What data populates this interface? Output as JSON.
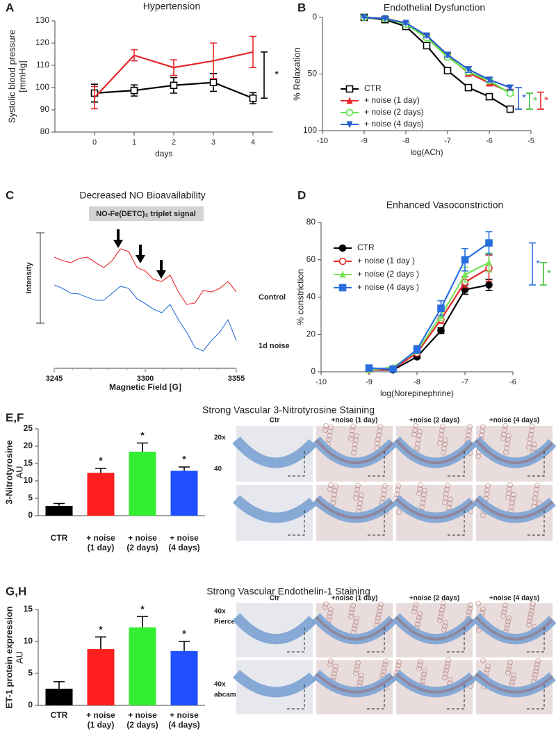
{
  "chart_data": [
    {
      "type": "line",
      "panel": "A",
      "title": "Hypertension",
      "y_label": [
        "Systolic blood pressure",
        "[mmHg]"
      ],
      "x_label": "days",
      "x": [
        0,
        1,
        2,
        3,
        4
      ],
      "xlim": [
        -1,
        4.5
      ],
      "xticks": [
        0,
        1,
        2,
        3,
        4
      ],
      "ylim": [
        80,
        130
      ],
      "yticks": [
        80,
        90,
        100,
        110,
        120,
        130
      ],
      "series": [
        {
          "color": "#000000",
          "marker": "square-open",
          "values": [
            97.5,
            98.7,
            101,
            102.3,
            95.2
          ],
          "errors": [
            4,
            2.5,
            3.5,
            4,
            2.5
          ]
        },
        {
          "color": "#e8262a",
          "marker": "none",
          "values": [
            95.5,
            114.5,
            109,
            112,
            116
          ],
          "errors": [
            5,
            2.5,
            3.5,
            8,
            7
          ]
        }
      ],
      "annotations": [
        {
          "text": "*",
          "color": "#000000"
        }
      ]
    },
    {
      "type": "line",
      "panel": "B",
      "title": "Endothelial Dysfunction",
      "y_label": "% Relaxation",
      "x_label": "log(ACh)",
      "x": [
        -9,
        -8.5,
        -8,
        -7.5,
        -7,
        -6.5,
        -6,
        -5.5
      ],
      "xlim": [
        -10,
        -5
      ],
      "xticks": [
        -10,
        -9,
        -8,
        -7,
        -6,
        -5
      ],
      "ylim": [
        100,
        0
      ],
      "yticks": [
        0,
        50,
        100
      ],
      "legend": "lower left",
      "series": [
        {
          "name": "CTR",
          "color": "#000000",
          "marker": "square-open",
          "values": [
            0,
            2,
            8,
            25,
            47,
            62,
            70,
            81
          ],
          "errors": [
            0,
            0.5,
            1,
            1.5,
            1.5,
            1.5,
            1.5,
            1.5
          ]
        },
        {
          "name": "+ noise (1 day)",
          "color": "#e8262a",
          "marker": "triangle",
          "values": [
            0,
            1,
            5,
            17,
            34,
            49,
            58,
            66
          ],
          "errors": [
            0,
            0.5,
            1,
            1.5,
            2,
            3,
            2.5,
            2.5
          ]
        },
        {
          "name": "+ noise (2 days)",
          "color": "#5ee34a",
          "marker": "circle-open",
          "values": [
            0,
            1,
            6,
            18,
            35,
            48,
            56,
            67
          ],
          "errors": [
            0,
            0.5,
            1,
            1.5,
            2,
            2,
            2,
            2
          ]
        },
        {
          "name": "+ noise (4 days)",
          "color": "#2a5fcf",
          "marker": "triangle-down",
          "values": [
            0,
            1,
            5,
            16,
            33,
            46,
            55,
            62
          ],
          "errors": [
            0,
            0.5,
            1,
            1.5,
            2,
            2.5,
            2,
            2
          ]
        }
      ],
      "annotations": [
        {
          "text": "*",
          "color": "#2a5fcf"
        },
        {
          "text": "*",
          "color": "#3cc43c"
        },
        {
          "text": "*",
          "color": "#e8262a"
        }
      ]
    },
    {
      "type": "line",
      "panel": "C",
      "title": "Decreased NO Bioavailability",
      "box": "NO-Fe(DETC)₂ triplet signal",
      "y_label": "Intensity",
      "x_label": "Magnetic Field [G]",
      "x": [
        3245,
        3250,
        3255,
        3260,
        3265,
        3270,
        3275,
        3280,
        3285,
        3290,
        3295,
        3300,
        3305,
        3310,
        3315,
        3320,
        3325,
        3330,
        3335,
        3340,
        3345,
        3350,
        3355
      ],
      "xlim": [
        3245,
        3355
      ],
      "xticks": [
        3245,
        3300,
        3355
      ],
      "ylim": [
        0,
        100
      ],
      "series": [
        {
          "name": "Control",
          "color": "#e8262a",
          "marker": "none",
          "values": [
            80,
            77.5,
            76,
            79,
            80,
            76,
            72.5,
            77.5,
            86,
            84,
            72.5,
            70,
            64,
            62.5,
            67,
            55,
            46,
            47,
            56,
            55,
            57.5,
            62.5,
            55
          ]
        },
        {
          "name": "1d noise",
          "color": "#2a6fd8",
          "marker": "none",
          "values": [
            60,
            57.5,
            54,
            53.5,
            51,
            49,
            49,
            54,
            59,
            57.5,
            50,
            46.5,
            42.5,
            40,
            46,
            35,
            26,
            15,
            12.5,
            20,
            26,
            35,
            20
          ]
        }
      ]
    },
    {
      "type": "line",
      "panel": "D",
      "title": "Enhanced Vasoconstriction",
      "y_label": "% constriction",
      "x_label": "log(Norepinephrine)",
      "x": [
        -9,
        -8.5,
        -8,
        -7.5,
        -7,
        -6.5
      ],
      "xlim": [
        -10,
        -6
      ],
      "xticks": [
        -10,
        -9,
        -8,
        -7,
        -6
      ],
      "ylim": [
        0,
        80
      ],
      "yticks": [
        0,
        20,
        40,
        60,
        80
      ],
      "legend": "upper left",
      "series": [
        {
          "name": "CTR",
          "color": "#000000",
          "marker": "circle",
          "values": [
            1,
            1,
            8,
            22,
            44,
            46.5
          ],
          "errors": [
            0.5,
            0.5,
            1,
            1.5,
            2.5,
            3
          ]
        },
        {
          "name": "+ noise (1 day )",
          "color": "#e8262a",
          "marker": "circle-open",
          "values": [
            1,
            1.5,
            10,
            28,
            48,
            55.5
          ],
          "errors": [
            0.5,
            0.5,
            1,
            2,
            3,
            7
          ]
        },
        {
          "name": "+ noise (2 days )",
          "color": "#77e35a",
          "marker": "triangle",
          "values": [
            1,
            2.5,
            11,
            30,
            52,
            58.5
          ],
          "errors": [
            0.5,
            0.5,
            1,
            2.5,
            4,
            5
          ]
        },
        {
          "name": "+ noise (4 days )",
          "color": "#2a6fe0",
          "marker": "square",
          "values": [
            2,
            1.5,
            12,
            34,
            60,
            69
          ],
          "errors": [
            1,
            0.5,
            2,
            4,
            6,
            6
          ]
        }
      ],
      "annotations": [
        {
          "text": "*",
          "color": "#2a6fe0"
        },
        {
          "text": "*",
          "color": "#3cc43c"
        }
      ]
    },
    {
      "type": "bar",
      "panel": "E,F",
      "title": "Strong Vascular 3-Nitrotyrosine Staining",
      "y_label": [
        "3-Nitrotyrosine",
        "AU"
      ],
      "categories": [
        [
          "CTR"
        ],
        [
          "+ noise",
          "(1 day)"
        ],
        [
          "+ noise",
          "(2 days)"
        ],
        [
          "+ noise",
          "(4 days)"
        ]
      ],
      "values": [
        2.8,
        12.3,
        18.4,
        12.9
      ],
      "errors": [
        0.7,
        1.3,
        2.5,
        1.1
      ],
      "significance": [
        null,
        "*",
        "*",
        "*"
      ],
      "colors": [
        "#000000",
        "#ff1f1f",
        "#33ee33",
        "#1f4fff"
      ],
      "ylim": [
        0,
        25
      ],
      "yticks": [
        0,
        5,
        10,
        15,
        20,
        25
      ],
      "image_columns": [
        "Ctr",
        "+noise (1 day)",
        "+noise (2 days)",
        "+noise (4 days)"
      ],
      "image_rows": [
        [
          "20x"
        ],
        [
          "40"
        ]
      ]
    },
    {
      "type": "bar",
      "panel": "G,H",
      "title": "Strong Vascular Endothelin-1 Staining",
      "y_label": [
        "ET-1 protein expression",
        "AU"
      ],
      "categories": [
        [
          "CTR"
        ],
        [
          "+ noise",
          "(1 day)"
        ],
        [
          "+ noise",
          "(2 days)"
        ],
        [
          "+ noise",
          "(4 days)"
        ]
      ],
      "values": [
        2.6,
        8.8,
        12.2,
        8.5
      ],
      "errors": [
        1.1,
        1.9,
        1.7,
        1.5
      ],
      "significance": [
        null,
        "*",
        "*",
        "*"
      ],
      "colors": [
        "#000000",
        "#ff1f1f",
        "#33ee33",
        "#1f4fff"
      ],
      "ylim": [
        0,
        15
      ],
      "yticks": [
        0,
        5,
        10,
        15
      ],
      "image_columns": [
        "Ctr",
        "+noise (1 day)",
        "+noise (2 days)",
        "+noise (4 days)"
      ],
      "image_rows": [
        [
          "40x",
          "Pierce"
        ],
        [
          "40x",
          "abcam"
        ]
      ]
    }
  ]
}
